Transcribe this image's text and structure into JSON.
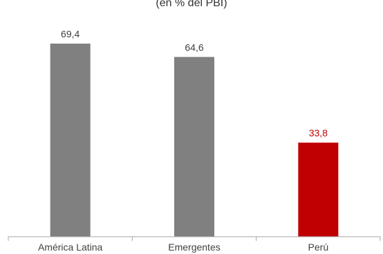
{
  "title": "(en % del PBI)",
  "chart_data": {
    "type": "bar",
    "title": "(en % del PBI)",
    "categories": [
      "América Latina",
      "Emergentes",
      "Perú"
    ],
    "values": [
      69.4,
      64.6,
      33.8
    ],
    "value_labels": [
      "69,4",
      "64,6",
      "33,8"
    ],
    "bar_colors": [
      "#808080",
      "#808080",
      "#c00000"
    ],
    "label_colors": [
      "#404040",
      "#404040",
      "#c00000"
    ],
    "xlabel": "",
    "ylabel": "",
    "ylim": [
      0,
      80
    ],
    "grid": false,
    "legend": "none"
  }
}
